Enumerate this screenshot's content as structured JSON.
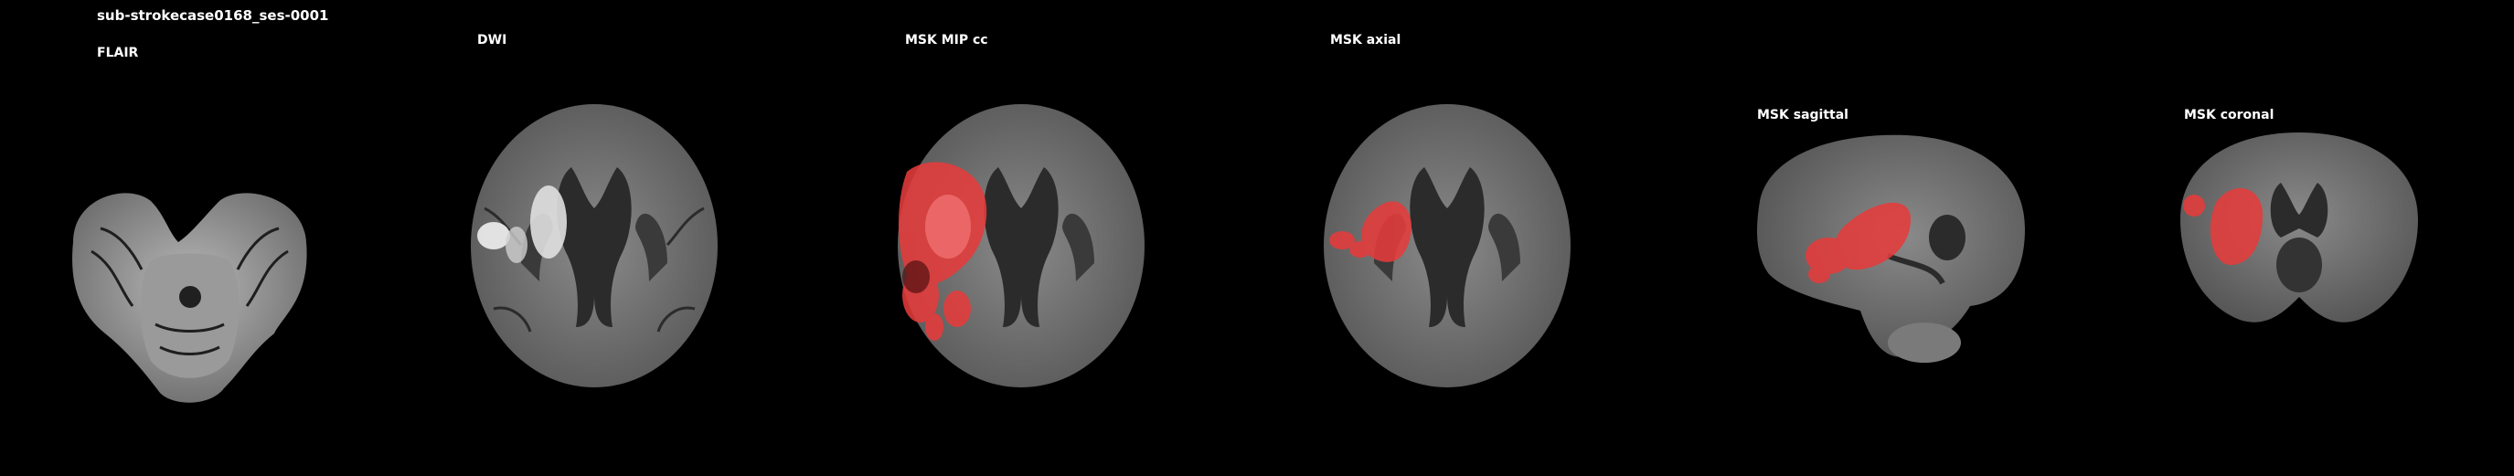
{
  "figure": {
    "title": "sub-strokecase0168_ses-0001"
  },
  "panels": [
    {
      "id": "flair",
      "label": "FLAIR"
    },
    {
      "id": "dwi",
      "label": "DWI"
    },
    {
      "id": "mip",
      "label": "MSK MIP cc"
    },
    {
      "id": "axial",
      "label": "MSK axial"
    },
    {
      "id": "sagittal",
      "label": "MSK sagittal"
    },
    {
      "id": "coronal",
      "label": "MSK coronal"
    }
  ],
  "colors": {
    "background": "#000000",
    "label_text": "#ffffff",
    "tissue": "#808080",
    "mask": "#e53b3b"
  }
}
